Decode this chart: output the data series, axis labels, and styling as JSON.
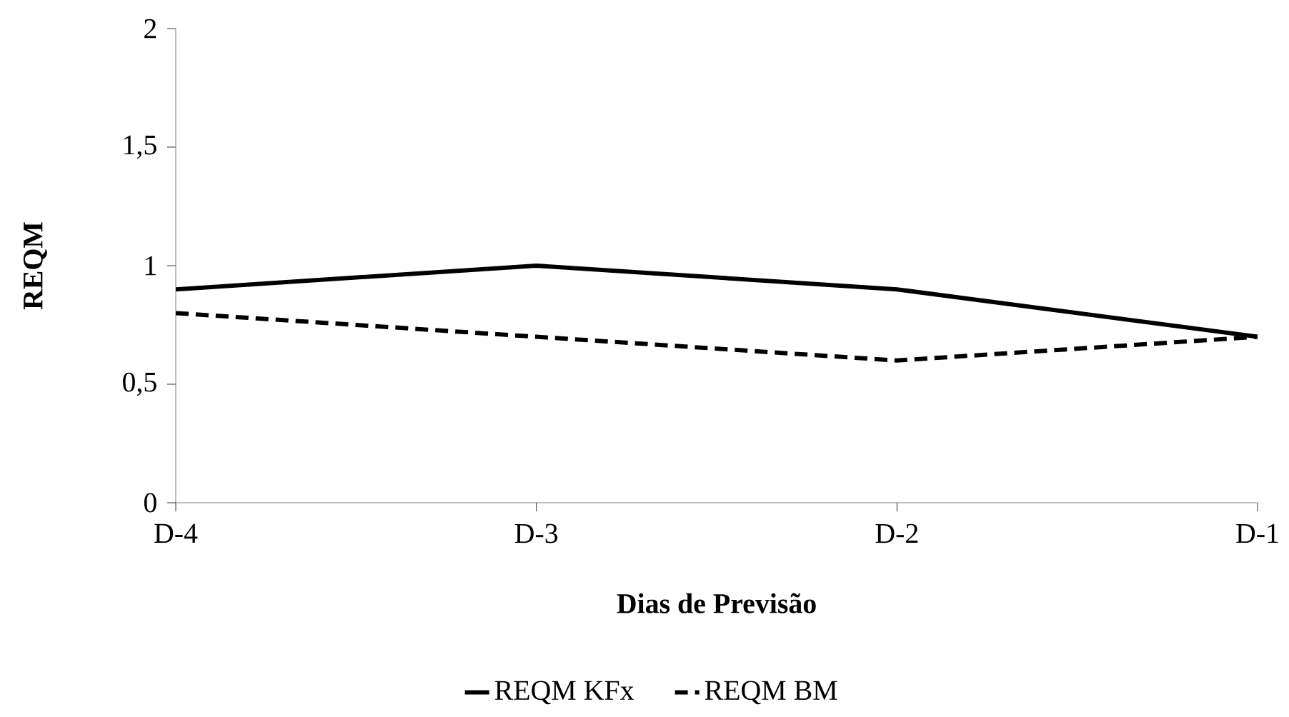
{
  "chart_data": {
    "type": "line",
    "xlabel": "Dias de Previsão",
    "ylabel": "REQM",
    "categories": [
      "D-4",
      "D-3",
      "D-2",
      "D-1"
    ],
    "series": [
      {
        "name": "REQM  KFx",
        "color": "#000000",
        "line_style": "solid",
        "values": [
          0.9,
          1.0,
          0.9,
          0.7
        ]
      },
      {
        "name": "REQM  BM",
        "color": "#000000",
        "line_style": "dashed",
        "values": [
          0.8,
          0.7,
          0.6,
          0.7
        ]
      }
    ],
    "ylim": [
      0,
      2
    ],
    "yticks": [
      0,
      {
        "value": 0.5,
        "label": "0,5"
      },
      1,
      {
        "value": 1.5,
        "label": "1,5"
      },
      2
    ],
    "grid": false,
    "legend": "bottom",
    "marker": "none"
  }
}
